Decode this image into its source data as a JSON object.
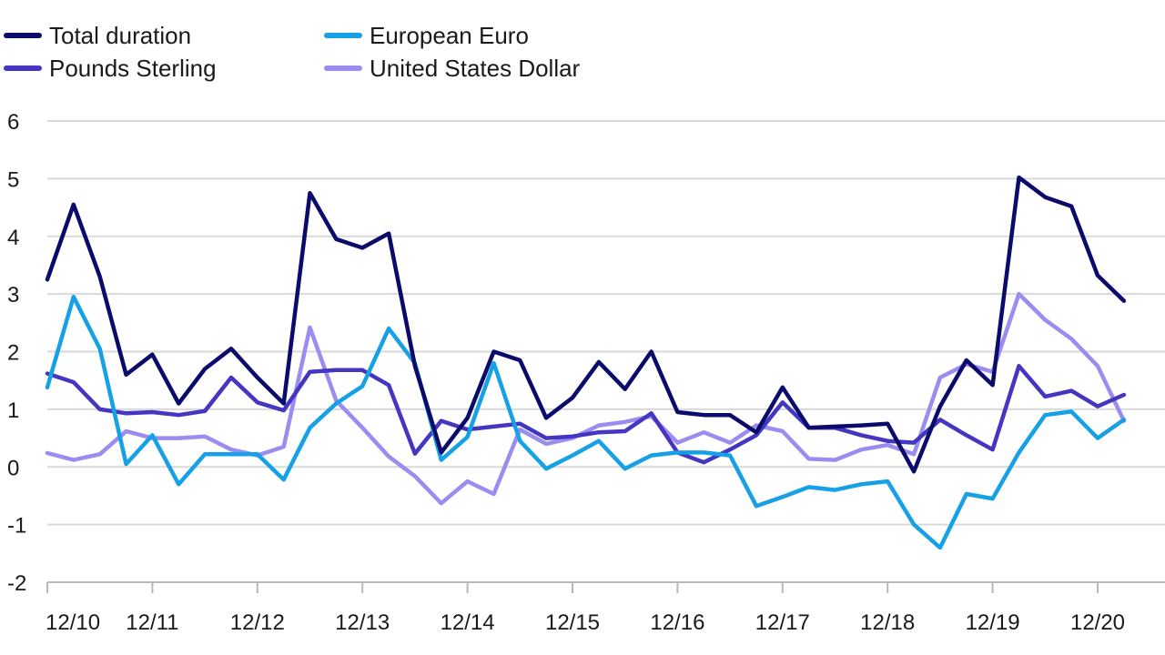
{
  "chart_data": {
    "type": "line",
    "title": "",
    "xlabel": "",
    "ylabel": "",
    "ylim": [
      -2,
      6
    ],
    "yticks": [
      "6",
      "5",
      "4",
      "3",
      "2",
      "1",
      "0",
      "-1",
      "-2"
    ],
    "x_tick_labels": [
      "12/10",
      "12/11",
      "12/12",
      "12/13",
      "12/14",
      "12/15",
      "12/16",
      "12/17",
      "12/18",
      "12/19",
      "12/20"
    ],
    "x": [
      "12/10",
      "03/11",
      "06/11",
      "09/11",
      "12/11",
      "03/12",
      "06/12",
      "09/12",
      "12/12",
      "03/13",
      "06/13",
      "09/13",
      "12/13",
      "03/14",
      "06/14",
      "09/14",
      "12/14",
      "03/15",
      "06/15",
      "09/15",
      "12/15",
      "03/16",
      "06/16",
      "09/16",
      "12/16",
      "03/17",
      "06/17",
      "09/17",
      "12/17",
      "03/18",
      "06/18",
      "09/18",
      "12/18",
      "03/19",
      "06/19",
      "09/19",
      "12/19",
      "03/20",
      "06/20",
      "09/20",
      "12/20",
      "03/21"
    ],
    "legend_position": "top-left",
    "grid": "horizontal",
    "series": [
      {
        "name": "Total duration",
        "color": "#0b0b6b",
        "values": [
          3.25,
          4.55,
          3.3,
          1.6,
          1.95,
          1.1,
          1.7,
          2.05,
          1.55,
          1.1,
          4.75,
          3.95,
          3.8,
          4.05,
          1.75,
          0.25,
          0.85,
          2.0,
          1.85,
          0.85,
          1.2,
          1.82,
          1.35,
          2.0,
          0.95,
          0.9,
          0.9,
          0.6,
          1.38,
          0.68,
          0.7,
          0.72,
          0.75,
          -0.08,
          1.05,
          1.85,
          1.42,
          5.02,
          4.68,
          4.52,
          3.32,
          2.88
        ]
      },
      {
        "name": "European Euro",
        "color": "#16a1e6",
        "values": [
          1.38,
          2.95,
          2.05,
          0.05,
          0.55,
          -0.3,
          0.22,
          0.22,
          0.22,
          -0.22,
          0.68,
          1.1,
          1.4,
          2.4,
          1.8,
          0.12,
          0.52,
          1.8,
          0.45,
          -0.03,
          0.2,
          0.45,
          -0.03,
          0.2,
          0.25,
          0.25,
          0.2,
          -0.68,
          -0.52,
          -0.35,
          -0.4,
          -0.3,
          -0.25,
          -1.0,
          -1.4,
          -0.47,
          -0.55,
          0.25,
          0.9,
          0.96,
          0.5,
          0.82
        ]
      },
      {
        "name": "Pounds Sterling",
        "color": "#4436c0",
        "values": [
          1.62,
          1.47,
          1.0,
          0.93,
          0.95,
          0.9,
          0.97,
          1.55,
          1.12,
          0.98,
          1.65,
          1.68,
          1.68,
          1.42,
          0.23,
          0.8,
          0.65,
          0.7,
          0.75,
          0.5,
          0.53,
          0.6,
          0.62,
          0.93,
          0.25,
          0.08,
          0.3,
          0.55,
          1.12,
          0.68,
          0.68,
          0.55,
          0.45,
          0.42,
          0.82,
          0.55,
          0.3,
          1.75,
          1.22,
          1.32,
          1.05,
          1.25
        ]
      },
      {
        "name": "United States Dollar",
        "color": "#9b8cf0",
        "values": [
          0.24,
          0.12,
          0.22,
          0.62,
          0.5,
          0.5,
          0.53,
          0.3,
          0.2,
          0.35,
          2.42,
          1.15,
          0.68,
          0.18,
          -0.16,
          -0.63,
          -0.25,
          -0.47,
          0.65,
          0.4,
          0.5,
          0.72,
          0.78,
          0.88,
          0.42,
          0.6,
          0.42,
          0.72,
          0.62,
          0.14,
          0.12,
          0.3,
          0.38,
          0.22,
          1.55,
          1.78,
          1.65,
          3.0,
          2.55,
          2.22,
          1.75,
          0.8
        ]
      }
    ]
  }
}
